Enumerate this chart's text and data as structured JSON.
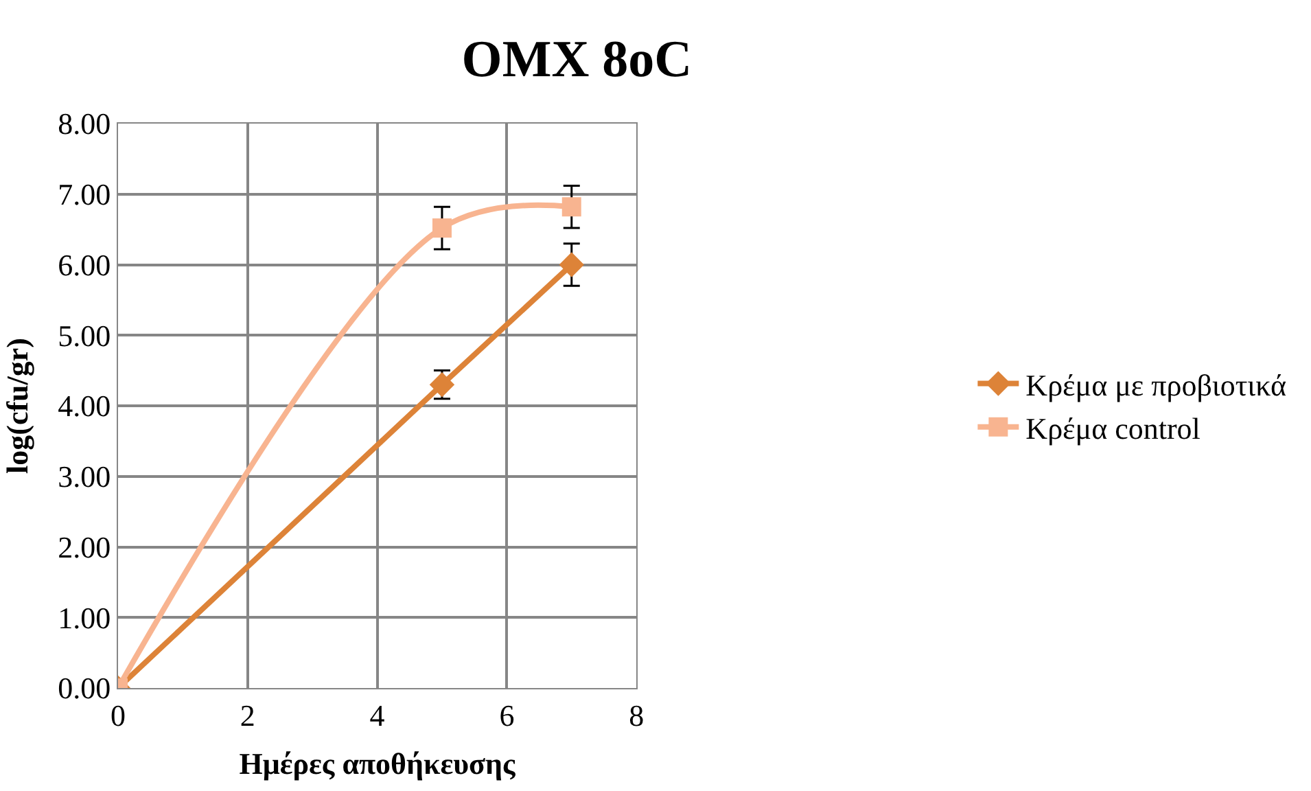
{
  "chart_data": {
    "type": "line",
    "title": "OMX 8oC",
    "xlabel": "Ημέρες αποθήκευσης",
    "ylabel": "log(cfu/gr)",
    "x": [
      0,
      5,
      7
    ],
    "series": [
      {
        "name": "Κρέμα με προβιοτικά",
        "color": "#dd8338",
        "marker": "diamond",
        "values": [
          0,
          4.3,
          6.0
        ],
        "errors": [
          null,
          0.2,
          0.3
        ]
      },
      {
        "name": "Κρέμα control",
        "color": "#f8b490",
        "marker": "square",
        "values": [
          0,
          6.52,
          6.82
        ],
        "errors": [
          null,
          0.3,
          0.3
        ]
      }
    ],
    "xlim": [
      0,
      8
    ],
    "xticks": [
      0,
      2,
      4,
      6,
      8
    ],
    "ylim": [
      0,
      8
    ],
    "yticks": [
      {
        "value": 0,
        "label": "0.00"
      },
      {
        "value": 1,
        "label": "1.00"
      },
      {
        "value": 2,
        "label": "2.00"
      },
      {
        "value": 3,
        "label": "3.00"
      },
      {
        "value": 4,
        "label": "4.00"
      },
      {
        "value": 5,
        "label": "5.00"
      },
      {
        "value": 6,
        "label": "6.00"
      },
      {
        "value": 7,
        "label": "7.00"
      },
      {
        "value": 8,
        "label": "8.00"
      }
    ],
    "grid": true,
    "legend": "right",
    "line_style": "solid"
  }
}
